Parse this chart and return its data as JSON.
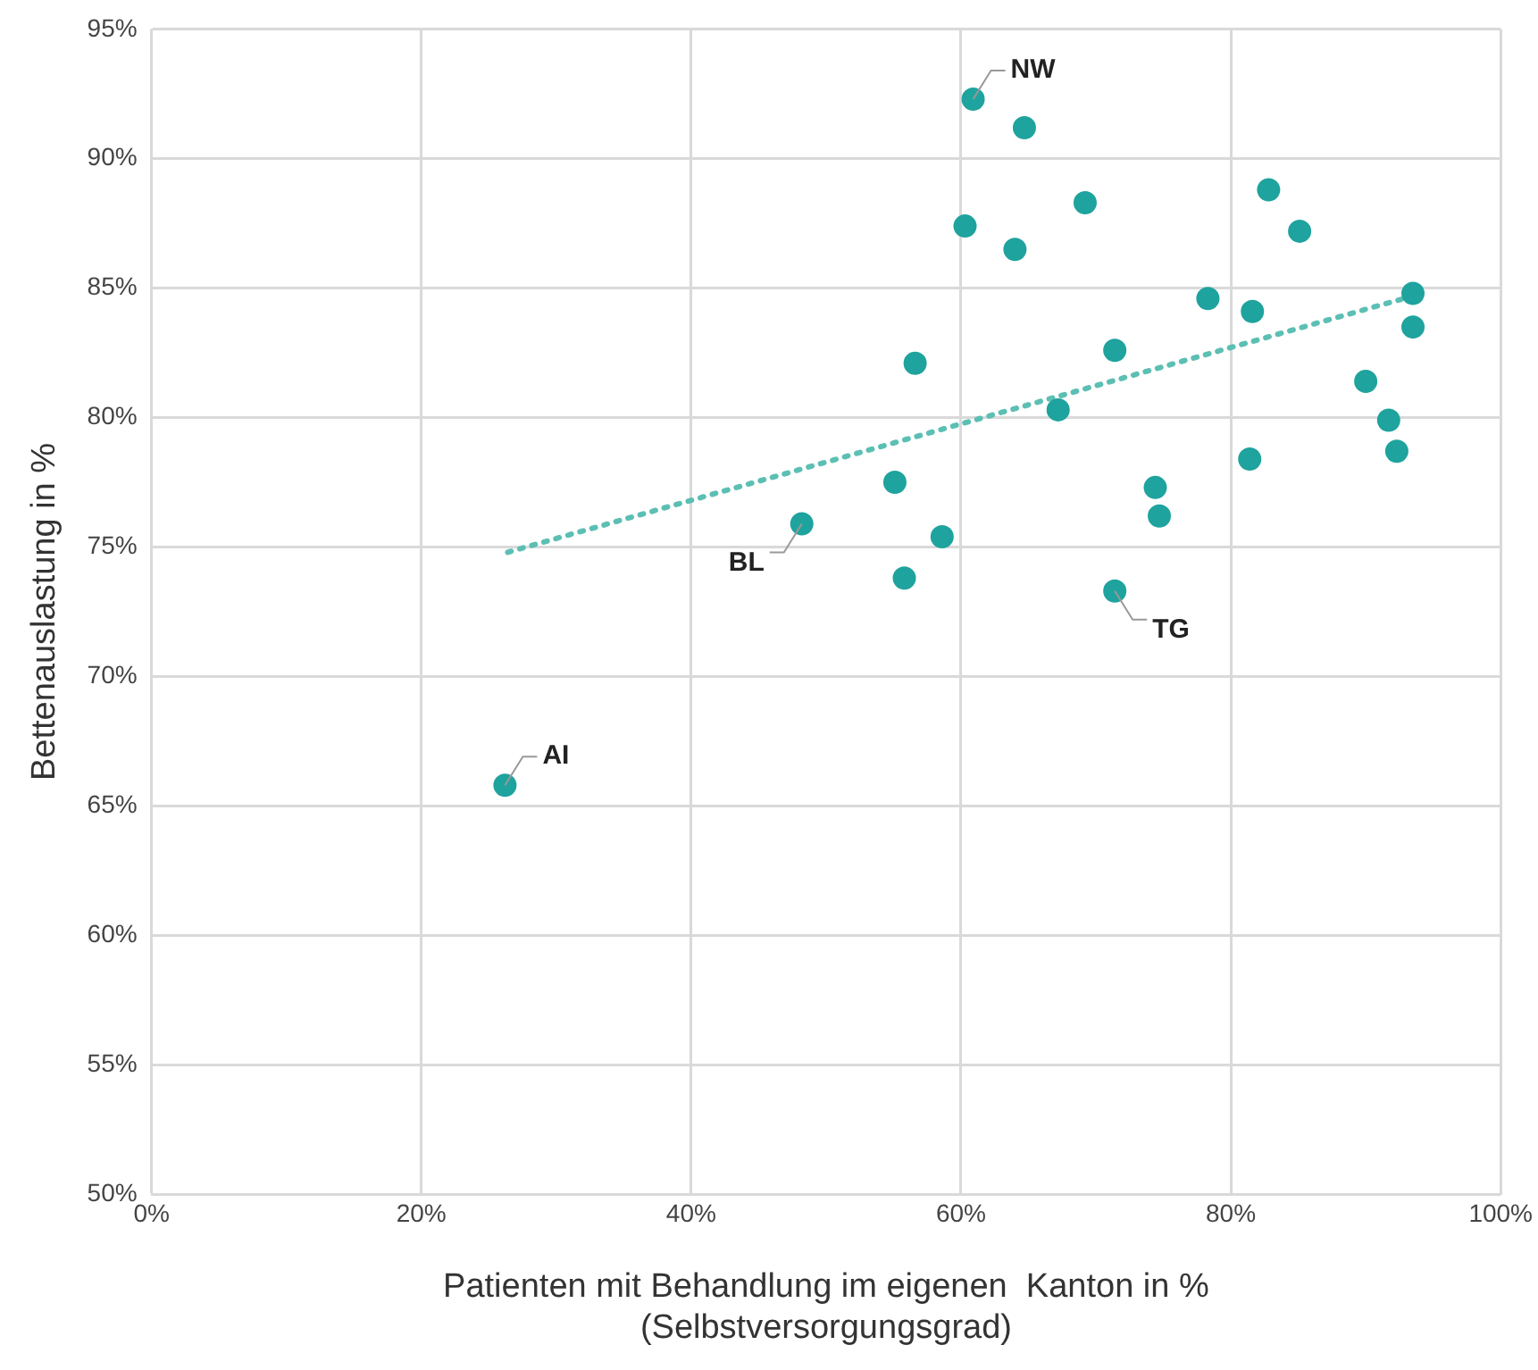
{
  "chart_data": {
    "type": "scatter",
    "xlabel": "Patienten mit Behandlung im eigenen  Kanton in %\n(Selbstversorgungsgrad)",
    "ylabel": "Bettenauslastung in %",
    "xlim": [
      0,
      100
    ],
    "ylim": [
      50,
      95
    ],
    "xticks": [
      {
        "value": 0,
        "label": "0%"
      },
      {
        "value": 20,
        "label": "20%"
      },
      {
        "value": 40,
        "label": "40%"
      },
      {
        "value": 60,
        "label": "60%"
      },
      {
        "value": 80,
        "label": "80%"
      },
      {
        "value": 100,
        "label": "100%"
      }
    ],
    "yticks": [
      {
        "value": 50,
        "label": "50%"
      },
      {
        "value": 55,
        "label": "55%"
      },
      {
        "value": 60,
        "label": "60%"
      },
      {
        "value": 65,
        "label": "65%"
      },
      {
        "value": 70,
        "label": "70%"
      },
      {
        "value": 75,
        "label": "75%"
      },
      {
        "value": 80,
        "label": "80%"
      },
      {
        "value": 85,
        "label": "85%"
      },
      {
        "value": 90,
        "label": "90%"
      },
      {
        "value": 95,
        "label": "95%"
      }
    ],
    "grid": true,
    "legend": false,
    "marker": "circle",
    "series": [
      {
        "color": "#1fa39e",
        "x": [
          60.9,
          64.7,
          60.3,
          64.0,
          69.2,
          82.8,
          85.1,
          78.3,
          81.6,
          93.5,
          93.5,
          71.4,
          56.6,
          67.2,
          90.0,
          91.7,
          92.3,
          81.4,
          74.4,
          74.7,
          55.1,
          48.2,
          58.6,
          55.8,
          71.4,
          26.2
        ],
        "values": [
          92.3,
          91.2,
          87.4,
          86.5,
          88.3,
          88.8,
          87.2,
          84.6,
          84.1,
          84.8,
          83.5,
          82.6,
          82.1,
          80.3,
          81.4,
          79.9,
          78.7,
          78.4,
          77.3,
          76.2,
          77.5,
          75.9,
          75.4,
          73.8,
          73.3,
          65.8
        ]
      },
      {
        "type": "line",
        "color": "#5cbfb3",
        "line_style": "dotted",
        "marker": "none",
        "x": [
          26.4,
          93.5
        ],
        "values": [
          74.8,
          84.7
        ]
      }
    ],
    "annotations": [
      {
        "text": "NW",
        "x": 60.9,
        "y": 92.3
      },
      {
        "text": "BL",
        "x": 48.2,
        "y": 75.9
      },
      {
        "text": "TG",
        "x": 71.4,
        "y": 73.3
      },
      {
        "text": "AI",
        "x": 26.2,
        "y": 65.8
      }
    ]
  }
}
